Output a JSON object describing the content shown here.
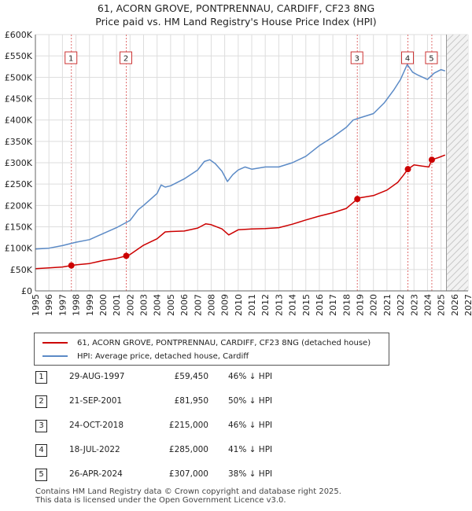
{
  "title": {
    "line1": "61, ACORN GROVE, PONTPRENNAU, CARDIFF, CF23 8NG",
    "line2": "Price paid vs. HM Land Registry's House Price Index (HPI)"
  },
  "colors": {
    "price_paid": "#cc0000",
    "hpi": "#5b8ac6",
    "grid": "#dddddd",
    "marker_line": "#e07070"
  },
  "legend": {
    "price_paid_label": "61, ACORN GROVE, PONTPRENNAU, CARDIFF, CF23 8NG (detached house)",
    "hpi_label": "HPI: Average price, detached house, Cardiff"
  },
  "transactions": [
    {
      "num": "1",
      "date": "29-AUG-1997",
      "price": "£59,450",
      "pct": "46% ↓ HPI"
    },
    {
      "num": "2",
      "date": "21-SEP-2001",
      "price": "£81,950",
      "pct": "50% ↓ HPI"
    },
    {
      "num": "3",
      "date": "24-OCT-2018",
      "price": "£215,000",
      "pct": "46% ↓ HPI"
    },
    {
      "num": "4",
      "date": "18-JUL-2022",
      "price": "£285,000",
      "pct": "41% ↓ HPI"
    },
    {
      "num": "5",
      "date": "26-APR-2024",
      "price": "£307,000",
      "pct": "38% ↓ HPI"
    }
  ],
  "footer": {
    "line1": "Contains HM Land Registry data © Crown copyright and database right 2025.",
    "line2": "This data is licensed under the Open Government Licence v3.0."
  },
  "chart_data": {
    "type": "line",
    "xlim": [
      1995,
      2027
    ],
    "ylim": [
      0,
      600000
    ],
    "x_ticks": [
      1995,
      1996,
      1997,
      1998,
      1999,
      2000,
      2001,
      2002,
      2003,
      2004,
      2005,
      2006,
      2007,
      2008,
      2009,
      2010,
      2011,
      2012,
      2013,
      2014,
      2015,
      2016,
      2017,
      2018,
      2019,
      2020,
      2021,
      2022,
      2023,
      2024,
      2025,
      2026,
      2027
    ],
    "y_ticks": [
      {
        "value": 0,
        "label": "£0"
      },
      {
        "value": 50000,
        "label": "£50K"
      },
      {
        "value": 100000,
        "label": "£100K"
      },
      {
        "value": 150000,
        "label": "£150K"
      },
      {
        "value": 200000,
        "label": "£200K"
      },
      {
        "value": 250000,
        "label": "£250K"
      },
      {
        "value": 300000,
        "label": "£300K"
      },
      {
        "value": 350000,
        "label": "£350K"
      },
      {
        "value": 400000,
        "label": "£400K"
      },
      {
        "value": 450000,
        "label": "£450K"
      },
      {
        "value": 500000,
        "label": "£500K"
      },
      {
        "value": 550000,
        "label": "£550K"
      },
      {
        "value": 600000,
        "label": "£600K"
      }
    ],
    "forecast_start": 2025.4,
    "series": [
      {
        "name": "HPI: Average price, detached house, Cardiff",
        "points": [
          [
            1995,
            98000
          ],
          [
            1996,
            100000
          ],
          [
            1997,
            106000
          ],
          [
            1998,
            114000
          ],
          [
            1999,
            120000
          ],
          [
            2000,
            134000
          ],
          [
            2001,
            148000
          ],
          [
            2002,
            165000
          ],
          [
            2002.6,
            190000
          ],
          [
            2003,
            200000
          ],
          [
            2004,
            228000
          ],
          [
            2004.3,
            248000
          ],
          [
            2004.6,
            243000
          ],
          [
            2005,
            246000
          ],
          [
            2006,
            262000
          ],
          [
            2007,
            283000
          ],
          [
            2007.5,
            303000
          ],
          [
            2007.9,
            307000
          ],
          [
            2008.3,
            298000
          ],
          [
            2008.8,
            280000
          ],
          [
            2009.2,
            256000
          ],
          [
            2009.6,
            272000
          ],
          [
            2010,
            283000
          ],
          [
            2010.5,
            290000
          ],
          [
            2011,
            285000
          ],
          [
            2012,
            290000
          ],
          [
            2013,
            290000
          ],
          [
            2014,
            300000
          ],
          [
            2015,
            315000
          ],
          [
            2016,
            340000
          ],
          [
            2017,
            360000
          ],
          [
            2018,
            383000
          ],
          [
            2018.5,
            400000
          ],
          [
            2019,
            405000
          ],
          [
            2020,
            415000
          ],
          [
            2020.8,
            440000
          ],
          [
            2021.5,
            470000
          ],
          [
            2022,
            495000
          ],
          [
            2022.5,
            530000
          ],
          [
            2022.9,
            512000
          ],
          [
            2023.3,
            505000
          ],
          [
            2024,
            495000
          ],
          [
            2024.5,
            510000
          ],
          [
            2025,
            518000
          ],
          [
            2025.3,
            515000
          ]
        ]
      },
      {
        "name": "61, ACORN GROVE, PONTPRENNAU, CARDIFF, CF23 8NG (detached house)",
        "points": [
          [
            1995,
            52000
          ],
          [
            1996,
            54000
          ],
          [
            1997,
            56000
          ],
          [
            1997.66,
            59450
          ],
          [
            1998,
            61000
          ],
          [
            1999,
            64000
          ],
          [
            2000,
            71000
          ],
          [
            2001,
            76000
          ],
          [
            2001.72,
            81950
          ],
          [
            2002,
            85000
          ],
          [
            2003,
            107000
          ],
          [
            2004,
            122000
          ],
          [
            2004.6,
            138000
          ],
          [
            2005,
            139000
          ],
          [
            2006,
            140000
          ],
          [
            2007,
            147000
          ],
          [
            2007.6,
            157000
          ],
          [
            2008,
            155000
          ],
          [
            2008.8,
            145000
          ],
          [
            2009.3,
            131000
          ],
          [
            2010,
            143000
          ],
          [
            2011,
            145000
          ],
          [
            2012,
            146000
          ],
          [
            2013,
            148000
          ],
          [
            2014,
            156000
          ],
          [
            2015,
            166000
          ],
          [
            2016,
            175000
          ],
          [
            2017,
            183000
          ],
          [
            2018,
            193000
          ],
          [
            2018.81,
            215000
          ],
          [
            2019,
            218000
          ],
          [
            2020,
            223000
          ],
          [
            2021,
            236000
          ],
          [
            2021.8,
            254000
          ],
          [
            2022.2,
            270000
          ],
          [
            2022.55,
            285000
          ],
          [
            2023,
            295000
          ],
          [
            2023.6,
            292000
          ],
          [
            2024.1,
            290000
          ],
          [
            2024.32,
            307000
          ],
          [
            2024.8,
            312000
          ],
          [
            2025.3,
            318000
          ]
        ]
      }
    ],
    "sales": [
      {
        "label": "1",
        "x": 1997.66,
        "y": 59450
      },
      {
        "label": "2",
        "x": 2001.72,
        "y": 81950
      },
      {
        "label": "3",
        "x": 2018.81,
        "y": 215000
      },
      {
        "label": "4",
        "x": 2022.55,
        "y": 285000
      },
      {
        "label": "5",
        "x": 2024.32,
        "y": 307000
      }
    ]
  }
}
